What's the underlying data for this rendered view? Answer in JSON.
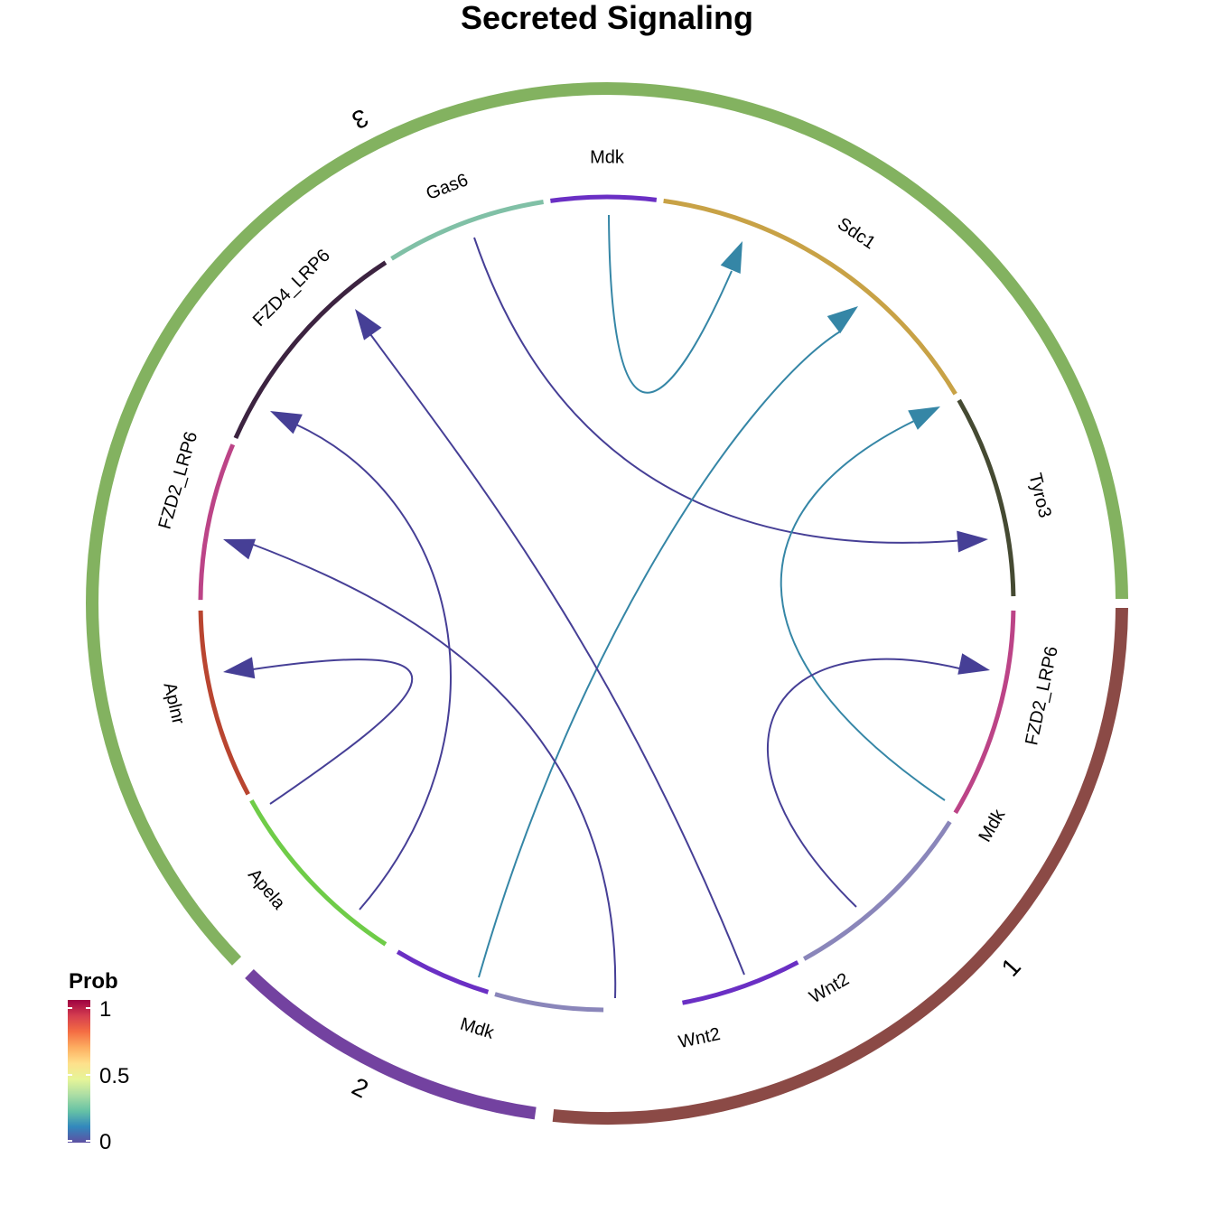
{
  "title": "Secreted Signaling",
  "groups": [
    {
      "label": "1",
      "color": "#8B4A46"
    },
    {
      "label": "2",
      "color": "#7342A0"
    },
    {
      "label": "3",
      "color": "#83B260"
    }
  ],
  "genes": [
    {
      "label": "Wnt2",
      "group": "1",
      "color": "#8A86BA"
    },
    {
      "label": "Mdk",
      "group": "1",
      "color": "#6A2FC4"
    },
    {
      "label": "FZD2_LRP6",
      "group": "1",
      "color": "#BC4487"
    },
    {
      "label": "Mdk",
      "group": "2",
      "color": "#6A2FC4"
    },
    {
      "label": "Wnt2",
      "group": "2",
      "color": "#8A86BA"
    },
    {
      "label": "Apela",
      "group": "3",
      "color": "#6FCC48"
    },
    {
      "label": "Aplnr",
      "group": "3",
      "color": "#B94530"
    },
    {
      "label": "FZD2_LRP6",
      "group": "3",
      "color": "#BC4487"
    },
    {
      "label": "FZD4_LRP6",
      "group": "3",
      "color": "#3C2340"
    },
    {
      "label": "Gas6",
      "group": "3",
      "color": "#80C0A6"
    },
    {
      "label": "Mdk",
      "group": "3",
      "color": "#6A2FC4"
    },
    {
      "label": "Sdc1",
      "group": "3",
      "color": "#C8A246"
    },
    {
      "label": "Tyro3",
      "group": "3",
      "color": "#454A32"
    }
  ],
  "links": [
    {
      "from": "Gas6 (3)",
      "to": "Tyro3 (3)",
      "prob": 0.0,
      "color": "#463F96"
    },
    {
      "from": "Mdk (3)",
      "to": "Sdc1 (3)",
      "prob": 0.1,
      "color": "#3586A6"
    },
    {
      "from": "Mdk (2)",
      "to": "Sdc1 (3)",
      "prob": 0.1,
      "color": "#3586A6"
    },
    {
      "from": "Mdk (1)",
      "to": "Sdc1 (3)",
      "prob": 0.1,
      "color": "#3586A6"
    },
    {
      "from": "Wnt2 (1)",
      "to": "FZD2_LRP6 (1)",
      "prob": 0.0,
      "color": "#463F96"
    },
    {
      "from": "Wnt2 (1)",
      "to": "FZD4_LRP6 (3)",
      "prob": 0.0,
      "color": "#463F96"
    },
    {
      "from": "Wnt2 (1)",
      "to": "FZD2_LRP6 (3)",
      "prob": 0.0,
      "color": "#463F96"
    },
    {
      "from": "Wnt2 (2)",
      "to": "FZD4_LRP6 (3)",
      "prob": 0.0,
      "color": "#463F96"
    },
    {
      "from": "Apela (3)",
      "to": "Aplnr (3)",
      "prob": 0.0,
      "color": "#463F96"
    }
  ],
  "legend": {
    "title": "Prob",
    "ticks": [
      "1",
      "0.5",
      "0"
    ],
    "colors": [
      "#9E0142",
      "#D53E4F",
      "#F46D43",
      "#FDAE61",
      "#FEE08B",
      "#E6F598",
      "#ABDDA4",
      "#66C2A5",
      "#3288BD",
      "#5E4FA2"
    ]
  }
}
